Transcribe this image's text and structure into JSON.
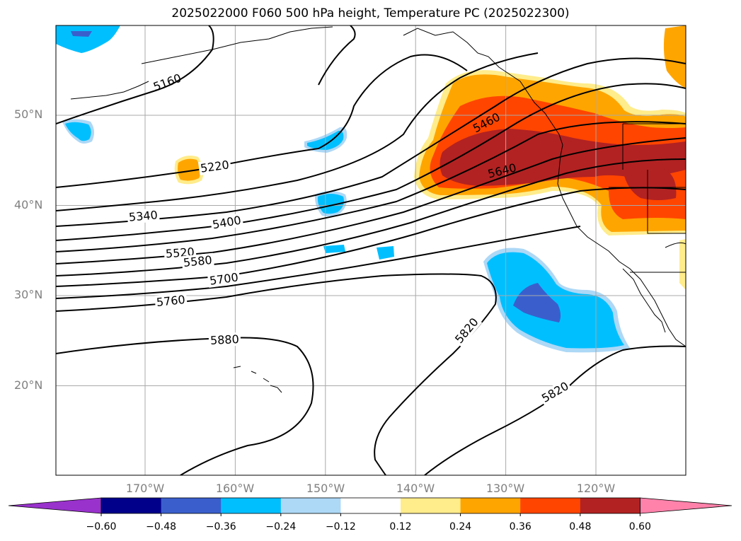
{
  "title": "2025022000 F060 500 hPa height, Temperature PC (2025022300)",
  "map": {
    "lat_labels": [
      "50°N",
      "40°N",
      "30°N",
      "20°N"
    ],
    "lon_labels": [
      "170°W",
      "160°W",
      "150°W",
      "140°W",
      "130°W",
      "120°W"
    ],
    "contour_labels": [
      "5160",
      "5220",
      "5340",
      "5400",
      "5460",
      "5520",
      "5580",
      "5640",
      "5700",
      "5760",
      "5820",
      "5880",
      "5820"
    ],
    "lat_values": [
      50,
      40,
      30,
      20
    ],
    "lon_values": [
      -170,
      -160,
      -150,
      -140,
      -130,
      -120
    ]
  },
  "colorbar": {
    "tick_labels": [
      "−0.60",
      "−0.48",
      "−0.36",
      "−0.24",
      "−0.12",
      "0.12",
      "0.24",
      "0.36",
      "0.48",
      "0.60"
    ],
    "colors": [
      "#9932cc",
      "#00008b",
      "#3a5fcd",
      "#00bfff",
      "#add8f6",
      "#ffffff",
      "#ffec8b",
      "#ffa500",
      "#ff4500",
      "#b22222",
      "#ff82ab"
    ]
  },
  "colors": {
    "contour": "#000000",
    "grid": "#a9a9a9",
    "coast": "#000000"
  }
}
